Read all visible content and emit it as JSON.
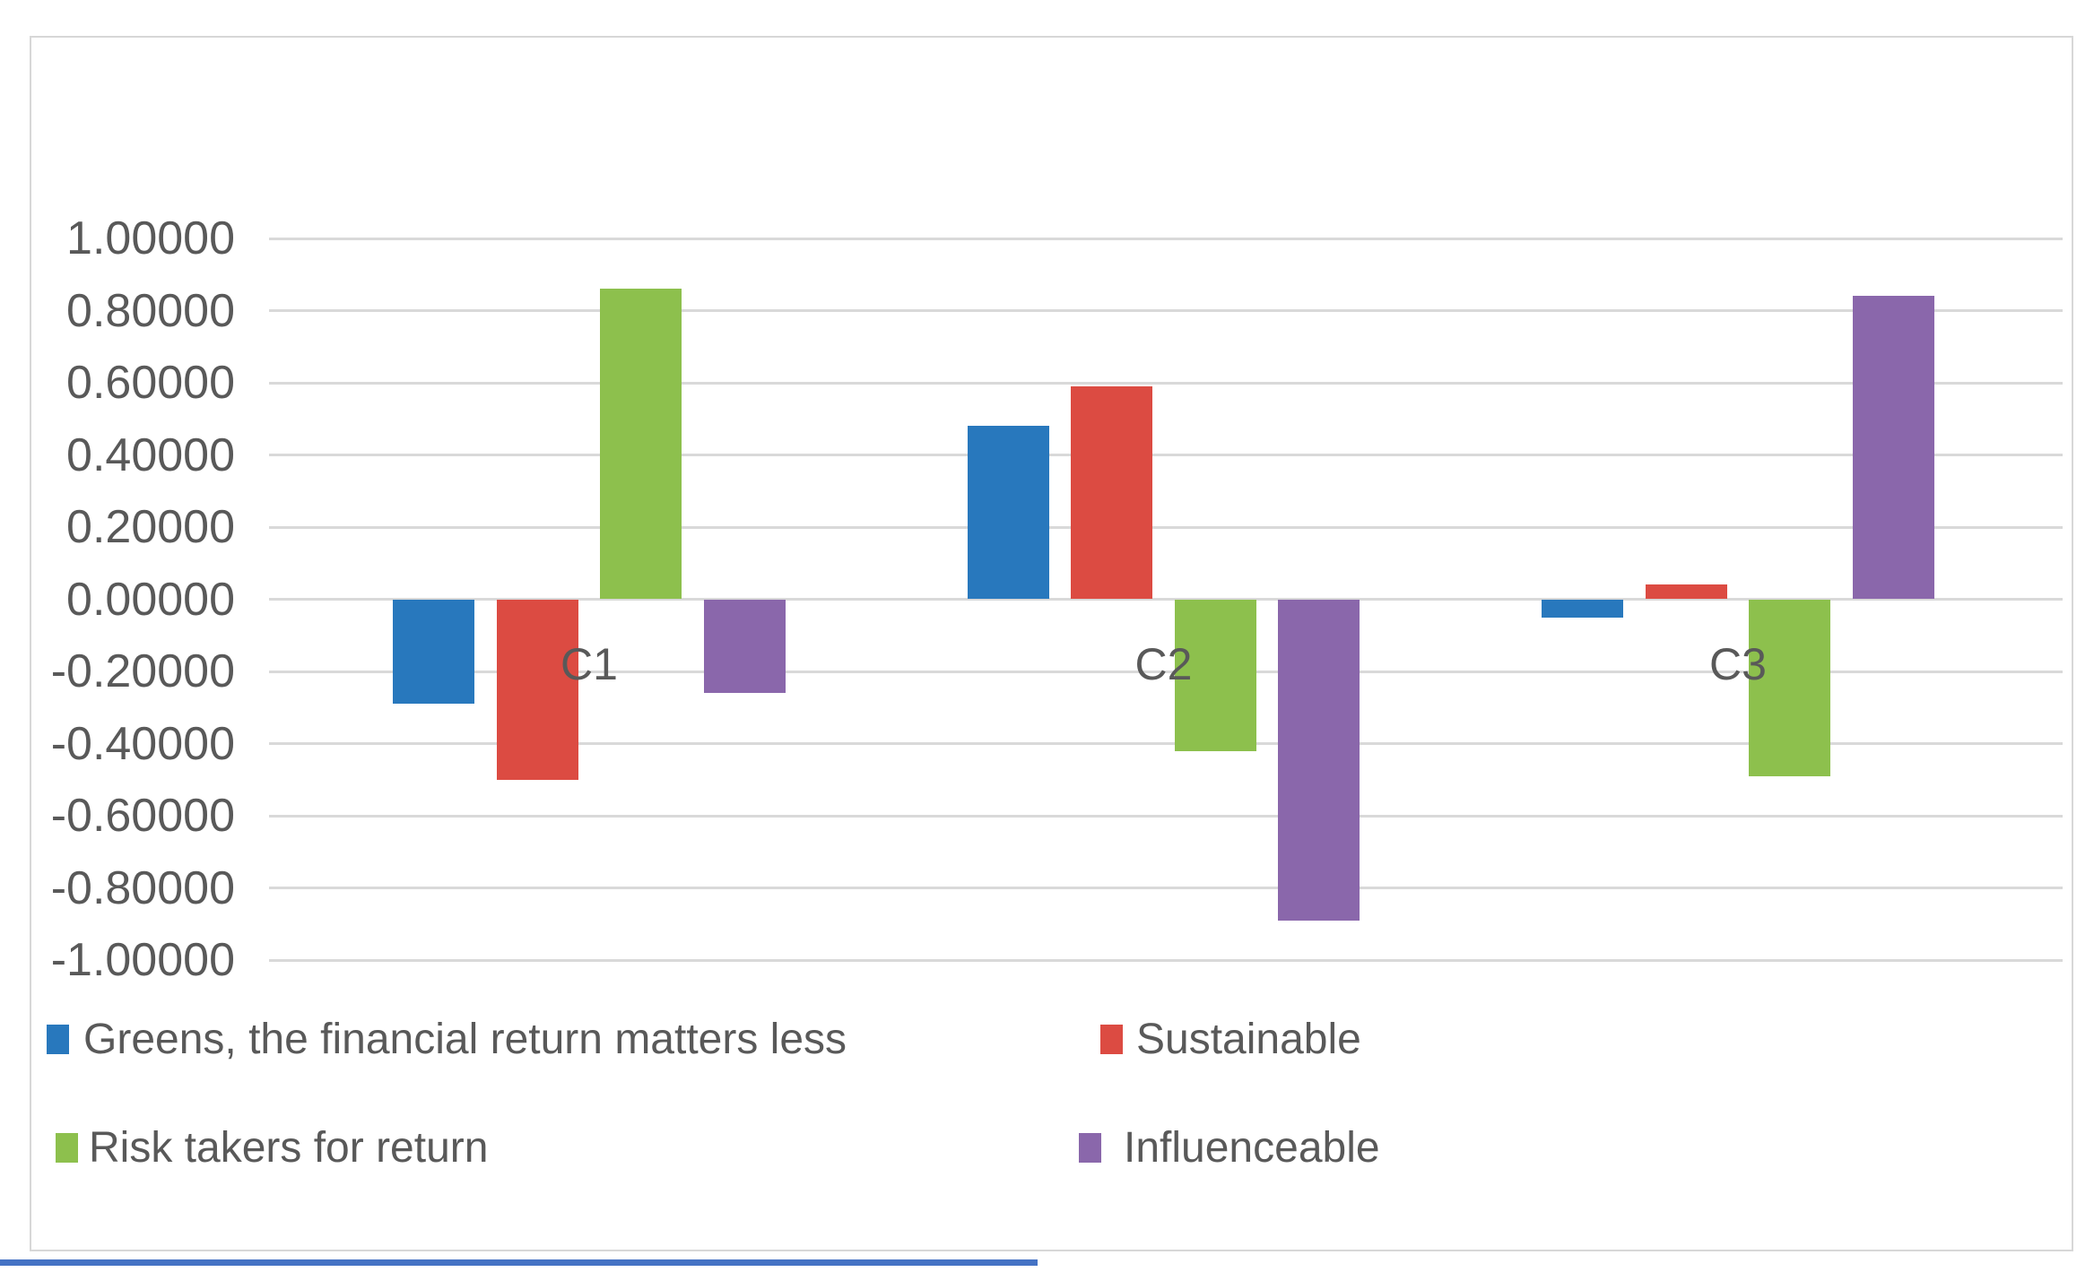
{
  "chart_data": {
    "type": "bar",
    "title": "",
    "xlabel": "",
    "ylabel": "",
    "categories": [
      "C1",
      "C2",
      "C3"
    ],
    "series": [
      {
        "name": "Greens, the financial return matters less",
        "color": "#2878BD",
        "values": [
          -0.29,
          0.48,
          -0.05
        ]
      },
      {
        "name": "Sustainable",
        "color": "#DC4B42",
        "values": [
          -0.5,
          0.59,
          0.04
        ]
      },
      {
        "name": "Risk takers for return",
        "color": "#8DC04D",
        "values": [
          0.86,
          -0.42,
          -0.49
        ]
      },
      {
        "name": "Influenceable",
        "color": "#8A67AB",
        "values": [
          -0.26,
          -0.89,
          0.84
        ]
      }
    ],
    "y_axis": {
      "min": -1.0,
      "max": 1.0,
      "step": 0.2,
      "tick_labels": [
        "1.00000",
        "0.80000",
        "0.60000",
        "0.40000",
        "0.20000",
        "0.00000",
        "-0.20000",
        "-0.40000",
        "-0.60000",
        "-0.80000",
        "-1.00000"
      ],
      "tick_color": "#595959"
    },
    "grid": true,
    "gridline_color": "#d9d9d9",
    "legend_position": "bottom",
    "category_label_color": "#595959"
  },
  "legend": {
    "items": [
      {
        "label": "Greens, the financial return matters less",
        "color": "#2878BD"
      },
      {
        "label": "Sustainable",
        "color": "#DC4B42"
      },
      {
        "label": "Risk takers for return",
        "color": "#8DC04D"
      },
      {
        "label": "Influenceable",
        "color": "#8A67AB"
      }
    ],
    "text_color": "#595959"
  },
  "frame": {
    "border_color": "#d7d7d7",
    "background": "#ffffff"
  },
  "decor": {
    "bottom_accent_color": "#4472C4"
  }
}
